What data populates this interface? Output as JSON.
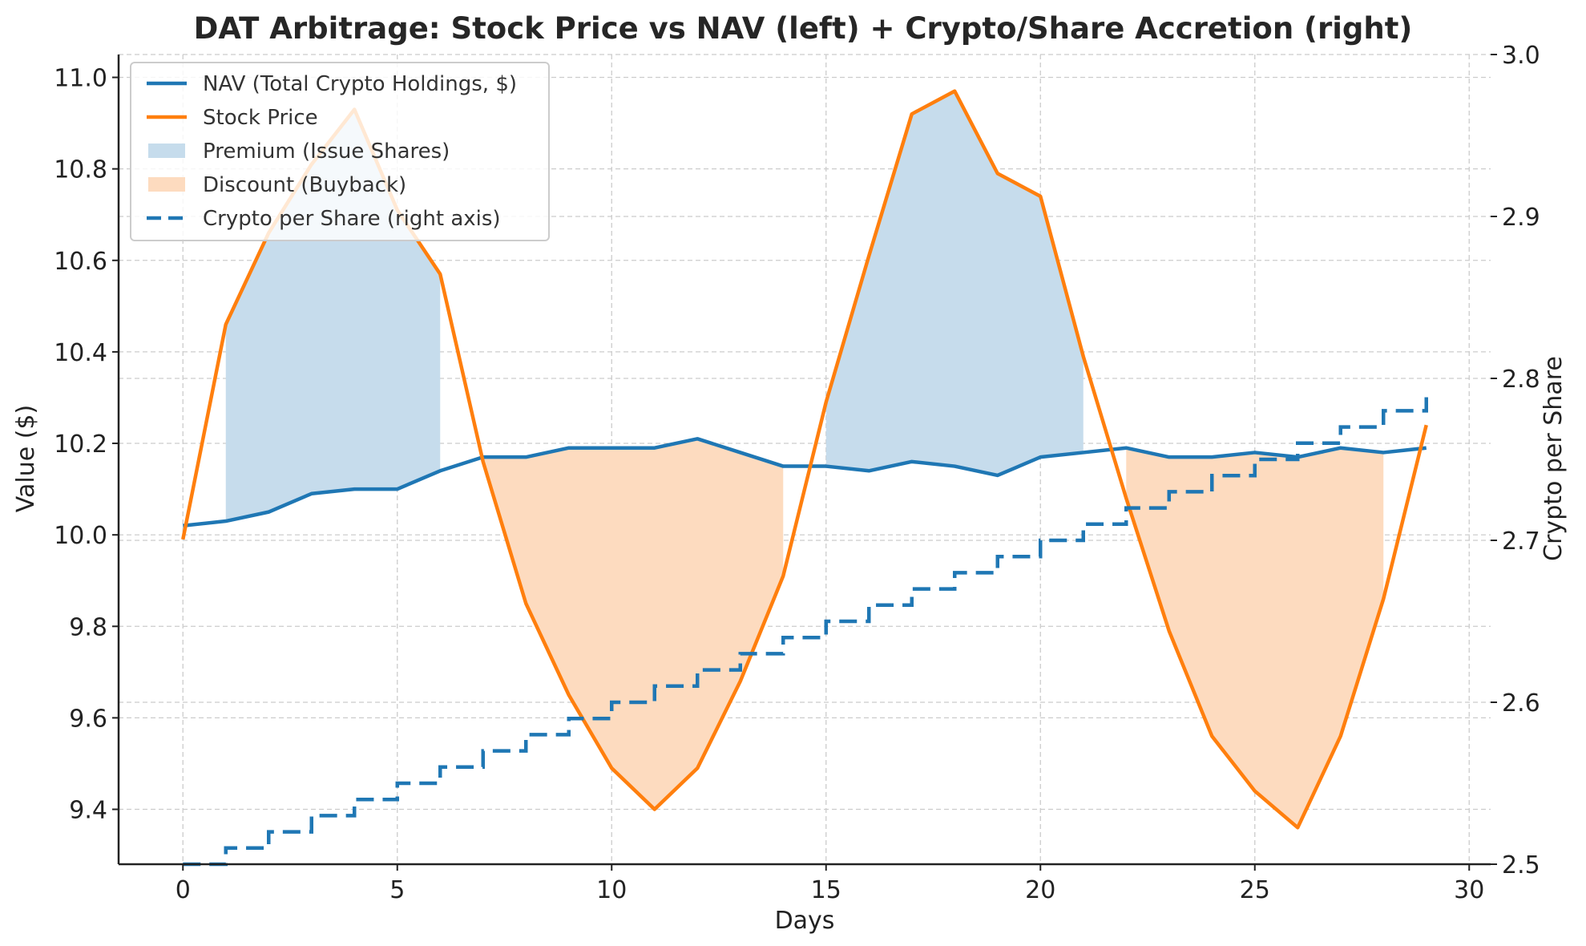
{
  "chart_data": {
    "type": "line",
    "title": "DAT Arbitrage: Stock Price vs NAV (left) + Crypto/Share Accretion (right)",
    "xlabel": "Days",
    "ylabel": "Value ($)",
    "ylabel_right": "Crypto per Share",
    "xlim": [
      -1.5,
      30.5
    ],
    "ylim": [
      9.28,
      11.05
    ],
    "ylim_right": [
      2.5,
      3.0
    ],
    "x_ticks": [
      0,
      5,
      10,
      15,
      20,
      25,
      30
    ],
    "y_ticks": [
      9.4,
      9.6,
      9.8,
      10.0,
      10.2,
      10.4,
      10.6,
      10.8,
      11.0
    ],
    "y_tick_labels": [
      "9.4",
      "9.6",
      "9.8",
      "10.0",
      "10.2",
      "10.4",
      "10.6",
      "10.8",
      "11.0"
    ],
    "y_right_ticks": [
      2.5,
      2.6,
      2.7,
      2.8,
      2.9,
      3.0
    ],
    "y_right_tick_labels": [
      "2.5",
      "2.6",
      "2.7",
      "2.8",
      "2.9",
      "3.0"
    ],
    "grid": true,
    "legend_position": "top-left",
    "x": [
      0,
      1,
      2,
      3,
      4,
      5,
      6,
      7,
      8,
      9,
      10,
      11,
      12,
      13,
      14,
      15,
      16,
      17,
      18,
      19,
      20,
      21,
      22,
      23,
      24,
      25,
      26,
      27,
      28,
      29
    ],
    "series": [
      {
        "name": "NAV (Total Crypto Holdings, $)",
        "axis": "left",
        "style": "solid",
        "color": "#1f77b4",
        "values": [
          10.02,
          10.03,
          10.05,
          10.09,
          10.1,
          10.1,
          10.14,
          10.17,
          10.17,
          10.19,
          10.19,
          10.19,
          10.21,
          10.18,
          10.15,
          10.15,
          10.14,
          10.16,
          10.15,
          10.13,
          10.17,
          10.18,
          10.19,
          10.17,
          10.17,
          10.18,
          10.17,
          10.19,
          10.18,
          10.19
        ]
      },
      {
        "name": "Stock Price",
        "axis": "left",
        "style": "solid",
        "color": "#ff7f0e",
        "values": [
          9.99,
          10.46,
          10.66,
          10.81,
          10.93,
          10.71,
          10.57,
          10.16,
          9.85,
          9.65,
          9.49,
          9.4,
          9.49,
          9.68,
          9.91,
          10.29,
          10.61,
          10.92,
          10.97,
          10.79,
          10.74,
          10.39,
          10.08,
          9.79,
          9.56,
          9.44,
          9.36,
          9.56,
          9.86,
          10.24
        ]
      },
      {
        "name": "Crypto per Share (right axis)",
        "axis": "right",
        "style": "dashed-step",
        "color": "#1f77b4",
        "values": [
          2.5,
          2.51,
          2.52,
          2.53,
          2.54,
          2.55,
          2.56,
          2.57,
          2.58,
          2.59,
          2.6,
          2.61,
          2.62,
          2.63,
          2.64,
          2.65,
          2.66,
          2.67,
          2.68,
          2.69,
          2.7,
          2.71,
          2.72,
          2.73,
          2.74,
          2.75,
          2.76,
          2.77,
          2.78,
          2.79
        ]
      }
    ],
    "fills": [
      {
        "name": "Premium (Issue Shares)",
        "color": "#c6dcec",
        "between": [
          "NAV (Total Crypto Holdings, $)",
          "Stock Price"
        ],
        "ranges": [
          [
            1,
            6
          ],
          [
            15,
            21
          ]
        ]
      },
      {
        "name": "Discount (Buyback)",
        "color": "#fddbbf",
        "between": [
          "NAV (Total Crypto Holdings, $)",
          "Stock Price"
        ],
        "ranges": [
          [
            7,
            14
          ],
          [
            22,
            28
          ]
        ]
      }
    ],
    "legend": [
      {
        "label": "NAV (Total Crypto Holdings, $)",
        "kind": "line",
        "color": "#1f77b4"
      },
      {
        "label": "Stock Price",
        "kind": "line",
        "color": "#ff7f0e"
      },
      {
        "label": "Premium (Issue Shares)",
        "kind": "patch",
        "color": "#c6dcec"
      },
      {
        "label": "Discount (Buyback)",
        "kind": "patch",
        "color": "#fddbbf"
      },
      {
        "label": "Crypto per Share (right axis)",
        "kind": "dashed",
        "color": "#1f77b4"
      }
    ]
  }
}
